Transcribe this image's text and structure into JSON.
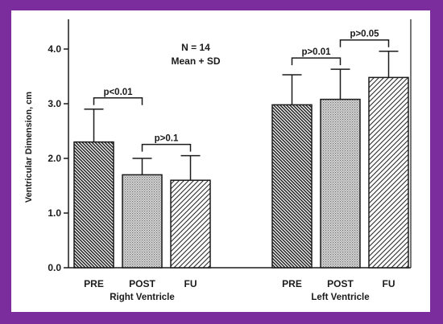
{
  "chart_data": {
    "type": "bar",
    "ylabel": "Ventricular Dimension, cm",
    "ylim": [
      0,
      4.3
    ],
    "yticks": [
      "0.0",
      "1.0",
      "2.0",
      "3.0",
      "4.0"
    ],
    "annotation": [
      "N = 14",
      "Mean + SD"
    ],
    "groups": [
      {
        "name": "Right Ventricle",
        "bars": [
          {
            "label": "PRE",
            "value": 2.3,
            "sd": 0.6,
            "pattern": "hatch-dense-back"
          },
          {
            "label": "POST",
            "value": 1.7,
            "sd": 0.3,
            "pattern": "dots"
          },
          {
            "label": "FU",
            "value": 1.6,
            "sd": 0.45,
            "pattern": "hatch-forward"
          }
        ],
        "comparisons": [
          {
            "from": 0,
            "to": 1,
            "text": "p<0.01"
          },
          {
            "from": 1,
            "to": 2,
            "text": "p>0.1"
          }
        ]
      },
      {
        "name": "Left Ventricle",
        "bars": [
          {
            "label": "PRE",
            "value": 2.98,
            "sd": 0.55,
            "pattern": "hatch-dense-back"
          },
          {
            "label": "POST",
            "value": 3.08,
            "sd": 0.55,
            "pattern": "dots"
          },
          {
            "label": "FU",
            "value": 3.48,
            "sd": 0.48,
            "pattern": "hatch-forward"
          }
        ],
        "comparisons": [
          {
            "from": 0,
            "to": 1,
            "text": "p>0.01"
          },
          {
            "from": 1,
            "to": 2,
            "text": "p>0.05"
          }
        ]
      }
    ],
    "grid": false,
    "legend": "none"
  }
}
